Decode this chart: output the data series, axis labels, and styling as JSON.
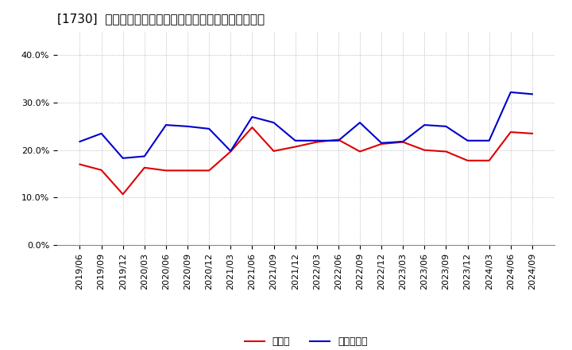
{
  "title": "[1730]  現頲金、有利子負債の総資産に対する比率の推移",
  "x_labels": [
    "2019/06",
    "2019/09",
    "2019/12",
    "2020/03",
    "2020/06",
    "2020/09",
    "2020/12",
    "2021/03",
    "2021/06",
    "2021/09",
    "2021/12",
    "2022/03",
    "2022/06",
    "2022/09",
    "2022/12",
    "2023/03",
    "2023/06",
    "2023/09",
    "2023/12",
    "2024/03",
    "2024/06",
    "2024/09"
  ],
  "cash_values": [
    0.17,
    0.158,
    0.107,
    0.163,
    0.157,
    0.157,
    0.157,
    0.197,
    0.248,
    0.198,
    0.207,
    0.217,
    0.222,
    0.197,
    0.213,
    0.217,
    0.2,
    0.197,
    0.178,
    0.178,
    0.238,
    0.235
  ],
  "debt_values": [
    0.218,
    0.235,
    0.183,
    0.187,
    0.253,
    0.25,
    0.245,
    0.198,
    0.27,
    0.258,
    0.22,
    0.22,
    0.22,
    0.258,
    0.215,
    0.218,
    0.253,
    0.25,
    0.22,
    0.22,
    0.322,
    0.318
  ],
  "cash_color": "#dd0000",
  "debt_color": "#0000cc",
  "legend_cash": "現頲金",
  "legend_debt": "有利子負債",
  "ylim": [
    0.0,
    0.45
  ],
  "yticks": [
    0.0,
    0.1,
    0.2,
    0.3,
    0.4
  ],
  "background_color": "#ffffff",
  "grid_color": "#aaaaaa",
  "title_fontsize": 11,
  "legend_fontsize": 9,
  "tick_fontsize": 8
}
